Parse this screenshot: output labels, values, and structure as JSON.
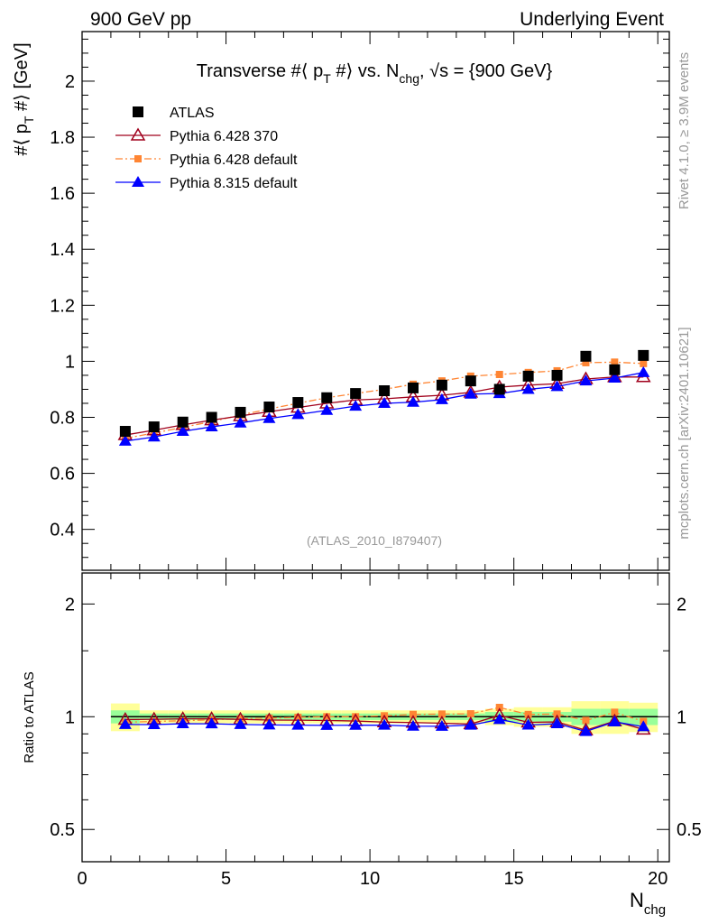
{
  "header": {
    "left": "900 GeV pp",
    "right": "Underlying Event"
  },
  "side": {
    "rivet": "Rivet 4.1.0, ≥ 3.9M events",
    "mcplots": "mcplots.cern.ch [arXiv:2401.10621]"
  },
  "chart_data": {
    "type": "scatter",
    "title": "Transverse #⟨ p_T #⟩ vs. N_chg, √s = {900 GeV}",
    "title_parts": {
      "a": "Transverse #⟨ p",
      "b": "T",
      "c": " #⟩ vs. N",
      "d": "chg",
      "e": ", √s = {900 GeV}"
    },
    "analysis": "(ATLAS_2010_I879407)",
    "ylabel": {
      "a": "#⟨ p",
      "b": "T",
      "c": " #⟩ [GeV]"
    },
    "xlabel": {
      "a": "N",
      "b": "chg"
    },
    "ratio_ylabel": "Ratio to ATLAS",
    "xlim": [
      0,
      20.4
    ],
    "ylim": [
      0.254,
      2.177
    ],
    "ratio_ylim": [
      0.41,
      2.42
    ],
    "ratio_scale": "log",
    "legend_position": "top-left",
    "x_ticks": [
      "0",
      "5",
      "10",
      "15",
      "20"
    ],
    "y_ticks": [
      "0.4",
      "0.6",
      "0.8",
      "1",
      "1.2",
      "1.4",
      "1.6",
      "1.8",
      "2"
    ],
    "ratio_ticks": [
      "0.5",
      "1",
      "2"
    ],
    "x": [
      1.5,
      2.5,
      3.5,
      4.5,
      5.5,
      6.5,
      7.5,
      8.5,
      9.5,
      10.5,
      11.5,
      12.5,
      13.5,
      14.5,
      15.5,
      16.5,
      17.5,
      18.5,
      19.5
    ],
    "band_total": [
      0.085,
      0.04,
      0.04,
      0.04,
      0.04,
      0.04,
      0.04,
      0.04,
      0.04,
      0.04,
      0.04,
      0.04,
      0.04,
      0.05,
      0.06,
      0.06,
      0.1,
      0.1,
      0.09
    ],
    "band_stat": [
      0.04,
      0.02,
      0.02,
      0.02,
      0.02,
      0.02,
      0.02,
      0.02,
      0.02,
      0.02,
      0.02,
      0.02,
      0.02,
      0.03,
      0.03,
      0.03,
      0.05,
      0.05,
      0.05
    ],
    "series": [
      {
        "name": "ATLAS",
        "color": "#000000",
        "marker": "square",
        "values": [
          0.75,
          0.766,
          0.783,
          0.8,
          0.818,
          0.837,
          0.853,
          0.87,
          0.885,
          0.895,
          0.905,
          0.915,
          0.93,
          0.9,
          0.947,
          0.95,
          1.018,
          0.97,
          1.021
        ]
      },
      {
        "name": "Pythia 6.428 370",
        "color": "#a0001c",
        "marker": "open-triangle",
        "values": [
          0.737,
          0.754,
          0.773,
          0.79,
          0.805,
          0.82,
          0.835,
          0.85,
          0.862,
          0.866,
          0.873,
          0.879,
          0.889,
          0.908,
          0.915,
          0.92,
          0.937,
          0.944,
          0.944
        ]
      },
      {
        "name": "Pythia 6.428 default",
        "color": "#ff8533",
        "marker": "square-small",
        "values": [
          0.725,
          0.744,
          0.764,
          0.785,
          0.808,
          0.83,
          0.85,
          0.87,
          0.885,
          0.9,
          0.918,
          0.93,
          0.947,
          0.953,
          0.96,
          0.966,
          0.995,
          0.997,
          0.992
        ]
      },
      {
        "name": "Pythia 8.315 default",
        "color": "#0000ff",
        "marker": "triangle",
        "values": [
          0.715,
          0.73,
          0.75,
          0.766,
          0.78,
          0.796,
          0.81,
          0.825,
          0.84,
          0.85,
          0.854,
          0.863,
          0.883,
          0.885,
          0.9,
          0.91,
          0.93,
          0.94,
          0.96
        ]
      }
    ]
  }
}
